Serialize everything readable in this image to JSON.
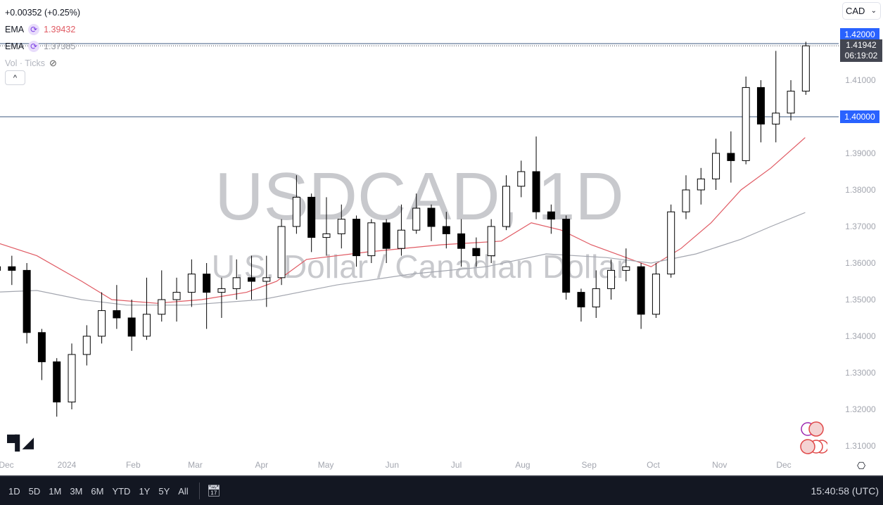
{
  "header": {
    "change": "+0.00352 (+0.25%)",
    "currency": "CAD",
    "currency_chevron": "⌄"
  },
  "indicators": [
    {
      "name": "EMA",
      "value": "1.39432",
      "color": "#e05a63"
    },
    {
      "name": "EMA",
      "value": "1.37385",
      "color": "#9598a1"
    }
  ],
  "volume": {
    "label": "Vol · Ticks"
  },
  "collapse_label": "^",
  "watermark": {
    "symbol": "USDCAD, 1D",
    "description": "U.S. Dollar / Canadian Dollar"
  },
  "price_tags": {
    "level_high": "1.42000",
    "last_price": "1.41942",
    "countdown": "06:19:02",
    "level_low": "1.40000"
  },
  "bottom": {
    "ranges": [
      "1D",
      "5D",
      "1M",
      "3M",
      "6M",
      "YTD",
      "1Y",
      "5Y",
      "All"
    ],
    "clock": "15:40:58 (UTC)"
  },
  "logo": "TV",
  "chart_data": {
    "type": "candlestick",
    "title": "USDCAD, 1D",
    "ylim": [
      1.305,
      1.428
    ],
    "y_ticks": [
      "1.42000",
      "1.41000",
      "1.40000",
      "1.39000",
      "1.38000",
      "1.37000",
      "1.36000",
      "1.35000",
      "1.34000",
      "1.33000",
      "1.32000",
      "1.31000"
    ],
    "x_ticks": [
      [
        "2023-12-01",
        "Dec"
      ],
      [
        "2024-01-01",
        "2024"
      ],
      [
        "2024-02-01",
        "Feb"
      ],
      [
        "2024-03-01",
        "Mar"
      ],
      [
        "2024-04-01",
        "Apr"
      ],
      [
        "2024-05-01",
        "May"
      ],
      [
        "2024-06-01",
        "Jun"
      ],
      [
        "2024-07-01",
        "Jul"
      ],
      [
        "2024-08-01",
        "Aug"
      ],
      [
        "2024-09-01",
        "Sep"
      ],
      [
        "2024-10-01",
        "Oct"
      ],
      [
        "2024-11-01",
        "Nov"
      ],
      [
        "2024-12-01",
        "Dec"
      ]
    ],
    "horizontal_lines": [
      1.42,
      1.4
    ],
    "candles_weekly_approx": [
      [
        "2023-11-27",
        1.358,
        1.363,
        1.35,
        1.359
      ],
      [
        "2023-12-04",
        1.359,
        1.362,
        1.354,
        1.358
      ],
      [
        "2023-12-11",
        1.358,
        1.36,
        1.338,
        1.341
      ],
      [
        "2023-12-18",
        1.341,
        1.342,
        1.328,
        1.333
      ],
      [
        "2023-12-25",
        1.333,
        1.334,
        1.318,
        1.322
      ],
      [
        "2024-01-01",
        1.322,
        1.338,
        1.32,
        1.335
      ],
      [
        "2024-01-08",
        1.335,
        1.343,
        1.332,
        1.34
      ],
      [
        "2024-01-15",
        1.34,
        1.352,
        1.338,
        1.347
      ],
      [
        "2024-01-22",
        1.347,
        1.354,
        1.342,
        1.345
      ],
      [
        "2024-01-29",
        1.345,
        1.35,
        1.336,
        1.34
      ],
      [
        "2024-02-05",
        1.34,
        1.356,
        1.339,
        1.346
      ],
      [
        "2024-02-12",
        1.346,
        1.358,
        1.344,
        1.35
      ],
      [
        "2024-02-19",
        1.35,
        1.356,
        1.344,
        1.352
      ],
      [
        "2024-02-26",
        1.352,
        1.361,
        1.348,
        1.357
      ],
      [
        "2024-03-04",
        1.357,
        1.36,
        1.342,
        1.352
      ],
      [
        "2024-03-11",
        1.352,
        1.356,
        1.345,
        1.353
      ],
      [
        "2024-03-18",
        1.353,
        1.361,
        1.35,
        1.356
      ],
      [
        "2024-03-25",
        1.356,
        1.362,
        1.35,
        1.355
      ],
      [
        "2024-04-01",
        1.355,
        1.362,
        1.348,
        1.356
      ],
      [
        "2024-04-08",
        1.356,
        1.372,
        1.354,
        1.37
      ],
      [
        "2024-04-15",
        1.37,
        1.384,
        1.368,
        1.378
      ],
      [
        "2024-04-22",
        1.378,
        1.379,
        1.363,
        1.367
      ],
      [
        "2024-04-29",
        1.367,
        1.378,
        1.362,
        1.368
      ],
      [
        "2024-05-06",
        1.368,
        1.376,
        1.364,
        1.372
      ],
      [
        "2024-05-13",
        1.372,
        1.373,
        1.359,
        1.362
      ],
      [
        "2024-05-20",
        1.362,
        1.372,
        1.36,
        1.371
      ],
      [
        "2024-05-27",
        1.371,
        1.372,
        1.36,
        1.364
      ],
      [
        "2024-06-03",
        1.364,
        1.376,
        1.362,
        1.369
      ],
      [
        "2024-06-10",
        1.369,
        1.379,
        1.368,
        1.375
      ],
      [
        "2024-06-17",
        1.375,
        1.376,
        1.366,
        1.37
      ],
      [
        "2024-06-24",
        1.37,
        1.374,
        1.364,
        1.368
      ],
      [
        "2024-07-01",
        1.368,
        1.372,
        1.359,
        1.364
      ],
      [
        "2024-07-08",
        1.364,
        1.367,
        1.359,
        1.362
      ],
      [
        "2024-07-15",
        1.362,
        1.372,
        1.36,
        1.37
      ],
      [
        "2024-07-22",
        1.37,
        1.384,
        1.369,
        1.381
      ],
      [
        "2024-07-29",
        1.381,
        1.388,
        1.378,
        1.385
      ],
      [
        "2024-08-05",
        1.385,
        1.3946,
        1.372,
        1.374
      ],
      [
        "2024-08-12",
        1.374,
        1.376,
        1.368,
        1.372
      ],
      [
        "2024-08-19",
        1.372,
        1.373,
        1.35,
        1.352
      ],
      [
        "2024-08-26",
        1.352,
        1.353,
        1.344,
        1.348
      ],
      [
        "2024-09-02",
        1.348,
        1.358,
        1.345,
        1.353
      ],
      [
        "2024-09-09",
        1.353,
        1.361,
        1.35,
        1.358
      ],
      [
        "2024-09-16",
        1.358,
        1.364,
        1.355,
        1.359
      ],
      [
        "2024-09-23",
        1.359,
        1.36,
        1.342,
        1.346
      ],
      [
        "2024-09-30",
        1.346,
        1.36,
        1.345,
        1.357
      ],
      [
        "2024-10-07",
        1.357,
        1.376,
        1.356,
        1.374
      ],
      [
        "2024-10-14",
        1.374,
        1.384,
        1.372,
        1.38
      ],
      [
        "2024-10-21",
        1.38,
        1.386,
        1.376,
        1.383
      ],
      [
        "2024-10-28",
        1.383,
        1.394,
        1.38,
        1.39
      ],
      [
        "2024-11-04",
        1.39,
        1.396,
        1.382,
        1.388
      ],
      [
        "2024-11-11",
        1.388,
        1.411,
        1.387,
        1.408
      ],
      [
        "2024-11-18",
        1.408,
        1.41,
        1.393,
        1.398
      ],
      [
        "2024-11-25",
        1.398,
        1.418,
        1.393,
        1.401
      ],
      [
        "2024-12-02",
        1.401,
        1.41,
        1.399,
        1.407
      ],
      [
        "2024-12-09",
        1.407,
        1.4205,
        1.406,
        1.4194
      ]
    ],
    "ema_series": [
      {
        "value_label": "1.39432",
        "color": "#e05a63",
        "points": [
          [
            "2023-11-27",
            1.366
          ],
          [
            "2023-12-18",
            1.362
          ],
          [
            "2024-01-08",
            1.355
          ],
          [
            "2024-01-22",
            1.35
          ],
          [
            "2024-02-12",
            1.349
          ],
          [
            "2024-03-04",
            1.35
          ],
          [
            "2024-03-25",
            1.352
          ],
          [
            "2024-04-08",
            1.355
          ],
          [
            "2024-04-22",
            1.361
          ],
          [
            "2024-05-20",
            1.363
          ],
          [
            "2024-06-24",
            1.365
          ],
          [
            "2024-07-22",
            1.366
          ],
          [
            "2024-08-05",
            1.371
          ],
          [
            "2024-08-19",
            1.369
          ],
          [
            "2024-09-02",
            1.365
          ],
          [
            "2024-09-16",
            1.362
          ],
          [
            "2024-09-30",
            1.359
          ],
          [
            "2024-10-14",
            1.364
          ],
          [
            "2024-10-28",
            1.371
          ],
          [
            "2024-11-11",
            1.38
          ],
          [
            "2024-11-25",
            1.386
          ],
          [
            "2024-12-11",
            1.3943
          ]
        ]
      },
      {
        "value_label": "1.37385",
        "color": "#a3a6af",
        "points": [
          [
            "2023-11-27",
            1.352
          ],
          [
            "2023-12-18",
            1.3525
          ],
          [
            "2024-01-08",
            1.35
          ],
          [
            "2024-01-29",
            1.3485
          ],
          [
            "2024-02-26",
            1.3485
          ],
          [
            "2024-04-01",
            1.35
          ],
          [
            "2024-05-06",
            1.354
          ],
          [
            "2024-06-10",
            1.357
          ],
          [
            "2024-07-15",
            1.359
          ],
          [
            "2024-08-12",
            1.3625
          ],
          [
            "2024-09-09",
            1.3615
          ],
          [
            "2024-09-30",
            1.36
          ],
          [
            "2024-10-21",
            1.3625
          ],
          [
            "2024-11-11",
            1.3665
          ],
          [
            "2024-11-25",
            1.37
          ],
          [
            "2024-12-11",
            1.3738
          ]
        ]
      }
    ]
  }
}
